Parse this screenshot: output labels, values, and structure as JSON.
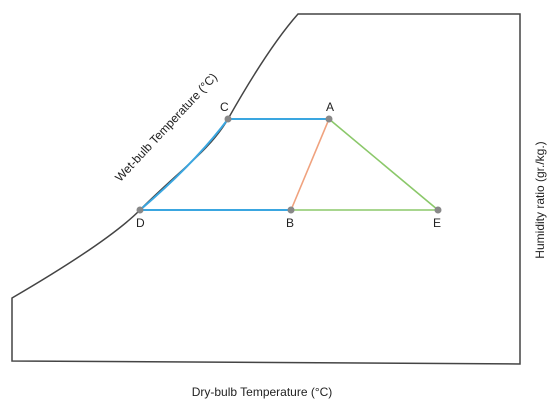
{
  "labels": {
    "x_axis": "Dry-bulb Temperature (°C)",
    "y_axis": "Humidity ratio (gr./kg.)",
    "saturation": "Wet-bulb Temperature (°C)"
  },
  "points": {
    "A": "A",
    "B": "B",
    "C": "C",
    "D": "D",
    "E": "E"
  },
  "colors": {
    "outline": "#444444",
    "blue": "#3aa6e0",
    "orange": "#f0a27e",
    "green": "#8bc86a",
    "point": "#888888"
  }
}
